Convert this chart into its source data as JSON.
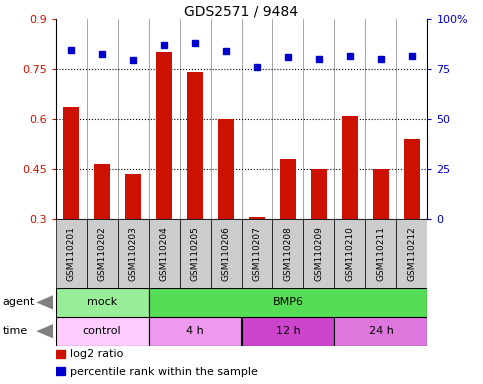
{
  "title": "GDS2571 / 9484",
  "samples": [
    "GSM110201",
    "GSM110202",
    "GSM110203",
    "GSM110204",
    "GSM110205",
    "GSM110206",
    "GSM110207",
    "GSM110208",
    "GSM110209",
    "GSM110210",
    "GSM110211",
    "GSM110212"
  ],
  "log2_ratio": [
    0.635,
    0.465,
    0.435,
    0.8,
    0.74,
    0.6,
    0.305,
    0.48,
    0.45,
    0.61,
    0.45,
    0.54
  ],
  "percentile": [
    0.845,
    0.825,
    0.795,
    0.87,
    0.88,
    0.84,
    0.76,
    0.81,
    0.8,
    0.815,
    0.8,
    0.818
  ],
  "bar_color": "#cc1100",
  "dot_color": "#0000cc",
  "ylim_left": [
    0.3,
    0.9
  ],
  "ylim_right": [
    0.0,
    1.0
  ],
  "yticks_left": [
    0.3,
    0.45,
    0.6,
    0.75,
    0.9
  ],
  "yticks_left_labels": [
    "0.3",
    "0.45",
    "0.6",
    "0.75",
    "0.9"
  ],
  "yticks_right": [
    0.0,
    0.25,
    0.5,
    0.75,
    1.0
  ],
  "yticks_right_labels": [
    "0",
    "25",
    "50",
    "75",
    "100%"
  ],
  "hlines": [
    0.45,
    0.6,
    0.75
  ],
  "agent_blocks": [
    {
      "start": 0,
      "end": 3,
      "color": "#99ee99",
      "label": "mock"
    },
    {
      "start": 3,
      "end": 12,
      "color": "#55dd55",
      "label": "BMP6"
    }
  ],
  "time_blocks": [
    {
      "start": 0,
      "end": 3,
      "color": "#ffccff",
      "label": "control"
    },
    {
      "start": 3,
      "end": 6,
      "color": "#ee99ee",
      "label": "4 h"
    },
    {
      "start": 6,
      "end": 9,
      "color": "#cc44cc",
      "label": "12 h"
    },
    {
      "start": 9,
      "end": 12,
      "color": "#dd77dd",
      "label": "24 h"
    }
  ],
  "legend_items": [
    {
      "color": "#cc1100",
      "label": "log2 ratio"
    },
    {
      "color": "#0000cc",
      "label": "percentile rank within the sample"
    }
  ],
  "label_bg": "#cccccc"
}
